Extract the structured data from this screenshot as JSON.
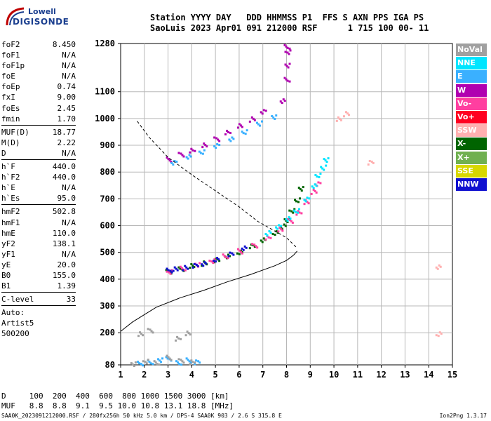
{
  "logo": {
    "line1": "Lowell",
    "line2": "DIGISONDE"
  },
  "header": {
    "line1": "Station YYYY DAY   DDD HHMMSS P1  FFS S AXN PPS IGA PS",
    "line2": "SaoLuis 2023 Apr01 091 212000 RSF      1 715 100 00- 11"
  },
  "params": {
    "group1": [
      [
        "foF2",
        "8.450"
      ],
      [
        "foF1",
        "N/A"
      ],
      [
        "foF1p",
        "N/A"
      ],
      [
        "foE",
        "N/A"
      ],
      [
        "foEp",
        "0.74"
      ],
      [
        "fxI",
        "9.00"
      ],
      [
        "foEs",
        "2.45"
      ],
      [
        "fmin",
        "1.70"
      ]
    ],
    "group2": [
      [
        "MUF(D)",
        "18.77"
      ],
      [
        "M(D)",
        "2.22"
      ],
      [
        "D",
        "N/A"
      ]
    ],
    "group3": [
      [
        "h`F",
        "440.0"
      ],
      [
        "h`F2",
        "440.0"
      ],
      [
        "h`E",
        "N/A"
      ],
      [
        "h`Es",
        "95.0"
      ]
    ],
    "group4": [
      [
        "hmF2",
        "502.8"
      ],
      [
        "hmF1",
        "N/A"
      ],
      [
        "hmE",
        "110.0"
      ],
      [
        "yF2",
        "138.1"
      ],
      [
        "yF1",
        "N/A"
      ],
      [
        "yE",
        "20.0"
      ],
      [
        "B0",
        "155.0"
      ],
      [
        "B1",
        "1.39"
      ]
    ],
    "group5": [
      [
        "C-level",
        "33"
      ]
    ],
    "auto": [
      "Auto:",
      "Artist5",
      "500200"
    ]
  },
  "legend": [
    {
      "label": "NoVal",
      "color": "#a0a0a0"
    },
    {
      "label": "NNE",
      "color": "#00e5ff"
    },
    {
      "label": "E",
      "color": "#3ab0ff"
    },
    {
      "label": "W",
      "color": "#b000b0"
    },
    {
      "label": "Vo-",
      "color": "#ff3fa0"
    },
    {
      "label": "Vo+",
      "color": "#ff0020"
    },
    {
      "label": "SSW",
      "color": "#ffb0b0"
    },
    {
      "label": "X-",
      "color": "#006400"
    },
    {
      "label": "X+",
      "color": "#70b050"
    },
    {
      "label": "SSE",
      "color": "#d8d800"
    },
    {
      "label": "NNW",
      "color": "#1010d0"
    }
  ],
  "muf_table": {
    "row1": "D     100  200  400  600  800 1000 1500 3000 [km]",
    "row2": "MUF   8.8  8.8  9.1  9.5 10.0 10.8 13.1 18.8 [MHz]"
  },
  "footer": {
    "left": "SAA0K_2023091212000.RSF / 280fx256h 50 kHz 5.0 km / DPS-4 SAA0K 903 / 2.6 S 315.8 E",
    "right": "Ion2Png 1.3.17"
  },
  "chart_data": {
    "type": "scatter",
    "x_ticks": [
      1,
      2,
      3,
      4,
      5,
      6,
      7,
      8,
      9,
      10,
      11,
      12,
      13,
      14,
      15
    ],
    "y_ticks": [
      80,
      200,
      300,
      400,
      500,
      600,
      700,
      800,
      900,
      1000,
      1100,
      1280
    ],
    "xlim": [
      1,
      15
    ],
    "ylim": [
      80,
      1280
    ],
    "grid": true,
    "legend_position": "right",
    "series": [
      {
        "name": "X-",
        "values": [
          [
            3,
            430
          ],
          [
            3.5,
            440
          ],
          [
            4,
            452
          ],
          [
            4.5,
            462
          ],
          [
            5,
            475
          ],
          [
            5.5,
            490
          ],
          [
            6,
            505
          ],
          [
            6.5,
            525
          ],
          [
            7,
            548
          ],
          [
            7.5,
            575
          ],
          [
            7.8,
            600
          ],
          [
            8,
            625
          ],
          [
            8.2,
            660
          ],
          [
            8.4,
            700
          ],
          [
            8.6,
            740
          ]
        ]
      },
      {
        "name": "Vo-",
        "values": [
          [
            3,
            432
          ],
          [
            3.6,
            445
          ],
          [
            4.2,
            456
          ],
          [
            4.8,
            470
          ],
          [
            5.4,
            488
          ],
          [
            6,
            508
          ],
          [
            6.6,
            530
          ],
          [
            7.2,
            560
          ],
          [
            7.7,
            590
          ],
          [
            8.1,
            620
          ],
          [
            8.5,
            650
          ],
          [
            8.8,
            690
          ],
          [
            9.1,
            730
          ],
          [
            9.3,
            760
          ]
        ]
      },
      {
        "name": "NNE",
        "values": [
          [
            7.2,
            575
          ],
          [
            7.6,
            600
          ],
          [
            8,
            630
          ],
          [
            8.4,
            660
          ],
          [
            8.8,
            700
          ],
          [
            9.1,
            750
          ],
          [
            9.3,
            790
          ],
          [
            9.5,
            820
          ],
          [
            9.6,
            850
          ]
        ]
      },
      {
        "name": "NNW",
        "values": [
          [
            3,
            435
          ],
          [
            3.3,
            440
          ],
          [
            3.7,
            445
          ],
          [
            4.1,
            455
          ],
          [
            4.5,
            462
          ],
          [
            5,
            478
          ],
          [
            5.6,
            495
          ],
          [
            6.2,
            518
          ]
        ]
      },
      {
        "name": "W",
        "values": [
          [
            8,
            1150
          ],
          [
            8,
            1200
          ],
          [
            8,
            1250
          ],
          [
            8,
            1270
          ],
          [
            3,
            850
          ],
          [
            3.5,
            870
          ],
          [
            4,
            885
          ],
          [
            4.5,
            905
          ],
          [
            5,
            925
          ],
          [
            5.5,
            950
          ],
          [
            6,
            975
          ],
          [
            6.5,
            1000
          ],
          [
            7,
            1030
          ],
          [
            7.8,
            1070
          ]
        ]
      },
      {
        "name": "E",
        "values": [
          [
            3.2,
            840
          ],
          [
            3.8,
            862
          ],
          [
            4.4,
            880
          ],
          [
            5,
            900
          ],
          [
            5.6,
            925
          ],
          [
            6.2,
            952
          ],
          [
            6.8,
            985
          ],
          [
            7.4,
            1010
          ],
          [
            1.8,
            90
          ],
          [
            2.2,
            95
          ],
          [
            2.6,
            100
          ],
          [
            3,
            105
          ],
          [
            3.4,
            90
          ],
          [
            3.8,
            100
          ],
          [
            4.2,
            95
          ]
        ]
      },
      {
        "name": "SSW",
        "values": [
          [
            10.2,
            1000
          ],
          [
            10.5,
            1020
          ],
          [
            11.5,
            840
          ],
          [
            14.4,
            450
          ],
          [
            14.4,
            200
          ]
        ]
      },
      {
        "name": "NoVal",
        "values": [
          [
            1.5,
            85
          ],
          [
            2,
            95
          ],
          [
            2.5,
            90
          ],
          [
            3,
            110
          ],
          [
            3.5,
            100
          ],
          [
            4,
            95
          ],
          [
            1.8,
            200
          ],
          [
            2.2,
            210
          ],
          [
            3.4,
            180
          ],
          [
            3.8,
            200
          ]
        ]
      }
    ]
  }
}
